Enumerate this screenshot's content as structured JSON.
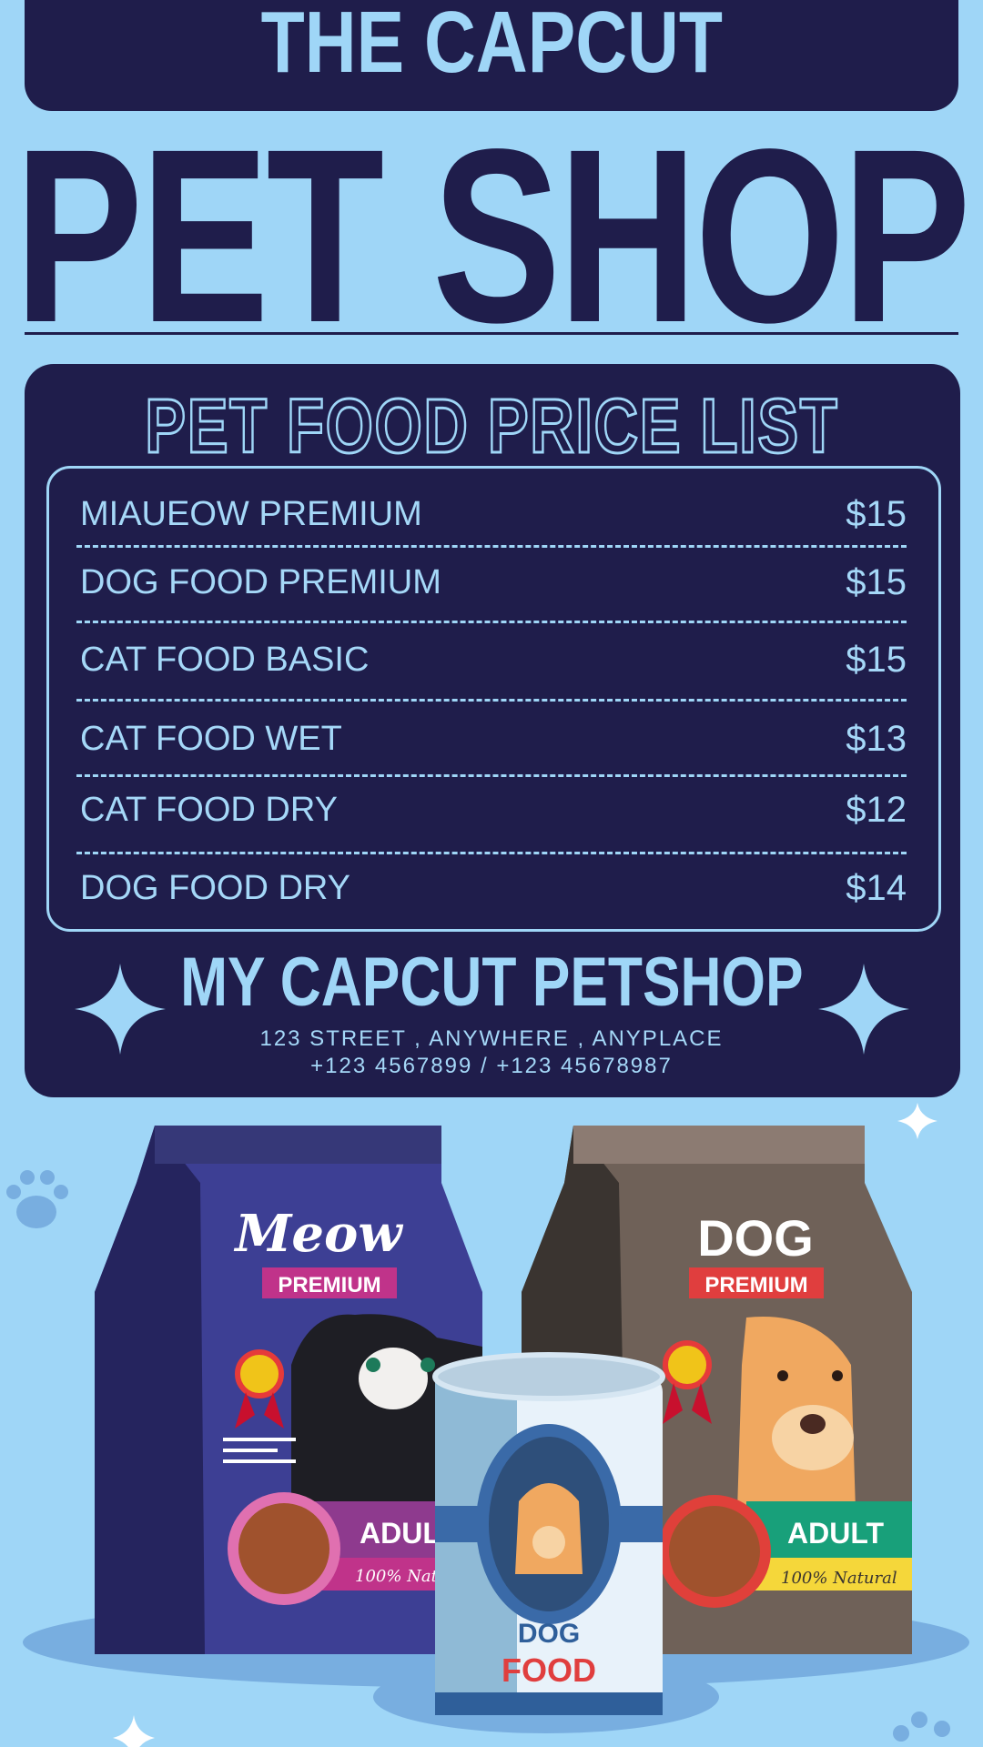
{
  "header": {
    "top_title": "THE CAPCUT",
    "main_title": "PET SHOP"
  },
  "price_list": {
    "title": "PET FOOD PRICE LIST",
    "items": [
      {
        "name": "MIAUEOW PREMIUM",
        "price": "$15"
      },
      {
        "name": "DOG FOOD PREMIUM",
        "price": "$15"
      },
      {
        "name": "CAT FOOD BASIC",
        "price": "$15"
      },
      {
        "name": "CAT FOOD WET",
        "price": "$13"
      },
      {
        "name": "CAT FOOD DRY",
        "price": "$12"
      },
      {
        "name": "DOG FOOD DRY",
        "price": "$14"
      }
    ]
  },
  "footer": {
    "shop_name": "MY CAPCUT PETSHOP",
    "address": "123 STREET , ANYWHERE , ANYPLACE",
    "phones": "+123 4567899 / +123 45678987"
  },
  "illustration": {
    "cat_bag": {
      "brand": "Meow",
      "tag": "PREMIUM",
      "label": "ADUL",
      "sub": "100% Natu"
    },
    "dog_bag": {
      "brand": "DOG",
      "tag": "PREMIUM",
      "label": "ADULT",
      "sub": "100% Natural"
    },
    "can": {
      "line1": "DOG",
      "line2": "FOOD"
    }
  },
  "colors": {
    "navy": "#1f1d4b",
    "sky": "#9fd6f7",
    "text_light": "#a5d8f8"
  }
}
